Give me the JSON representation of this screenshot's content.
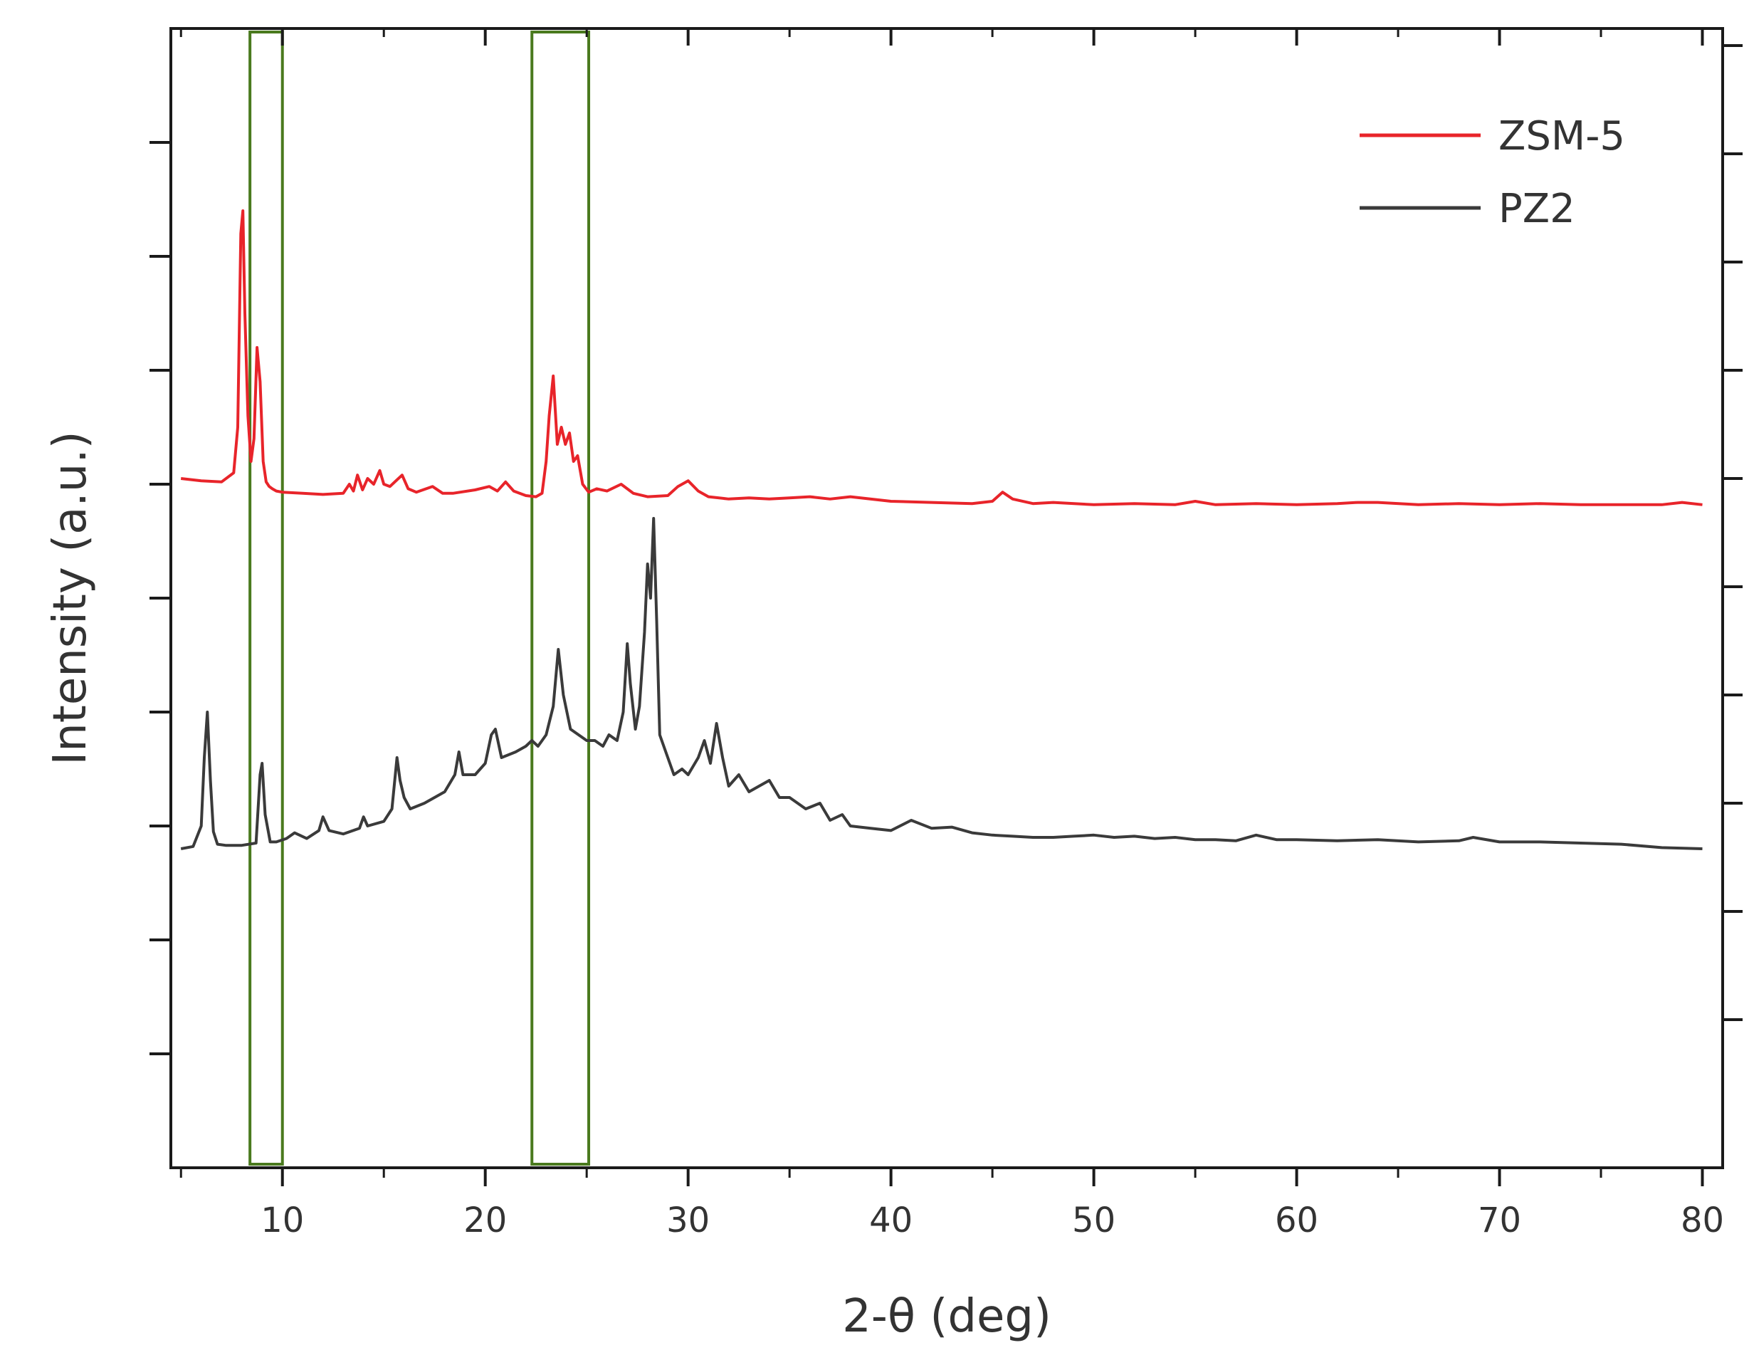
{
  "chart_data": {
    "type": "line",
    "xlabel": "2-θ (deg)",
    "ylabel": "Intensity (a.u.)",
    "xlim": [
      4.5,
      81
    ],
    "x_ticks": [
      10,
      20,
      30,
      40,
      50,
      60,
      70,
      80
    ],
    "x_tick_labels": [
      "10",
      "20",
      "30",
      "40",
      "50",
      "60",
      "70",
      "80"
    ],
    "ylim": [
      0,
      100
    ],
    "y_tick_labels_shown": false,
    "grid": false,
    "legend_placement": "top-right",
    "highlight_regions": [
      {
        "x": [
          8.4,
          10.0
        ],
        "color": "#4a7a1e"
      },
      {
        "x": [
          22.3,
          25.1
        ],
        "color": "#4a7a1e"
      }
    ],
    "series": [
      {
        "name": "ZSM-5",
        "color": "#e8242a",
        "baseline": 58,
        "x": [
          5,
          6,
          7,
          7.6,
          7.8,
          7.95,
          8.05,
          8.15,
          8.3,
          8.45,
          8.6,
          8.75,
          8.9,
          9.05,
          9.2,
          9.35,
          9.5,
          9.7,
          10,
          11,
          12,
          13,
          13.3,
          13.5,
          13.7,
          13.95,
          14.2,
          14.5,
          14.8,
          15.0,
          15.3,
          15.6,
          15.9,
          16.2,
          16.6,
          17.4,
          17.9,
          18.4,
          19.5,
          20.2,
          20.6,
          21.0,
          21.4,
          22.0,
          22.5,
          22.8,
          23.0,
          23.15,
          23.35,
          23.55,
          23.75,
          23.95,
          24.15,
          24.35,
          24.55,
          24.8,
          25.1,
          25.5,
          26.0,
          26.7,
          27.3,
          28.0,
          29.0,
          29.5,
          30.0,
          30.5,
          31.0,
          32.0,
          33.0,
          34.0,
          35.0,
          36.0,
          37.0,
          38.0,
          40.0,
          42.0,
          44.0,
          45.0,
          45.5,
          46.0,
          47.0,
          48.0,
          50.0,
          52.0,
          54.0,
          55.0,
          56.0,
          58.0,
          60.0,
          62.0,
          63.0,
          64.0,
          66.0,
          68.0,
          70.0,
          72.0,
          74.0,
          76.0,
          78.0,
          79.0,
          80.0
        ],
        "y": [
          60.5,
          60.3,
          60.2,
          61.0,
          65.0,
          82.0,
          84.0,
          75.0,
          66.0,
          62.0,
          64.0,
          72.0,
          69.0,
          62.0,
          60.2,
          59.8,
          59.6,
          59.4,
          59.3,
          59.2,
          59.1,
          59.2,
          60.0,
          59.4,
          60.8,
          59.5,
          60.5,
          60.0,
          61.2,
          60.0,
          59.8,
          60.3,
          60.8,
          59.6,
          59.3,
          59.8,
          59.2,
          59.2,
          59.5,
          59.8,
          59.4,
          60.2,
          59.4,
          59.0,
          58.9,
          59.2,
          62.0,
          66.0,
          69.5,
          63.5,
          65.0,
          63.5,
          64.5,
          62.0,
          62.5,
          60.0,
          59.3,
          59.6,
          59.4,
          60.0,
          59.2,
          58.9,
          59.0,
          59.8,
          60.3,
          59.4,
          58.9,
          58.7,
          58.8,
          58.7,
          58.8,
          58.9,
          58.7,
          58.9,
          58.5,
          58.4,
          58.3,
          58.5,
          59.3,
          58.7,
          58.3,
          58.4,
          58.2,
          58.3,
          58.2,
          58.5,
          58.2,
          58.3,
          58.2,
          58.3,
          58.4,
          58.4,
          58.2,
          58.3,
          58.2,
          58.3,
          58.2,
          58.2,
          58.2,
          58.4,
          58.2
        ]
      },
      {
        "name": "PZ2",
        "color": "#3a3a3a",
        "baseline": 28,
        "x": [
          5,
          5.6,
          6.0,
          6.15,
          6.3,
          6.45,
          6.6,
          6.8,
          7.2,
          8.0,
          8.7,
          8.9,
          9.0,
          9.15,
          9.4,
          9.7,
          10.2,
          10.6,
          11.2,
          11.8,
          12.0,
          12.3,
          13.0,
          13.8,
          14.0,
          14.2,
          15.0,
          15.4,
          15.65,
          15.8,
          16.0,
          16.3,
          17.0,
          18.0,
          18.5,
          18.7,
          18.9,
          19.5,
          20.0,
          20.3,
          20.5,
          20.8,
          21.5,
          22.0,
          22.3,
          22.6,
          23.0,
          23.35,
          23.6,
          23.85,
          24.2,
          24.6,
          25.0,
          25.4,
          25.8,
          26.1,
          26.5,
          26.8,
          27.0,
          27.15,
          27.4,
          27.6,
          27.85,
          28.0,
          28.15,
          28.3,
          28.45,
          28.6,
          28.9,
          29.3,
          29.7,
          30.0,
          30.5,
          30.8,
          31.1,
          31.4,
          31.7,
          32.0,
          32.5,
          33.0,
          33.5,
          34.0,
          34.5,
          35.0,
          35.8,
          36.5,
          37.0,
          37.6,
          38.0,
          39.0,
          40.0,
          41.0,
          42.0,
          43.0,
          44.0,
          45.0,
          46.0,
          47.0,
          48.0,
          49.0,
          50.0,
          51.0,
          52.0,
          53.0,
          54.0,
          55.0,
          56.0,
          57.0,
          58.0,
          59.0,
          60.0,
          62.0,
          64.0,
          66.0,
          68.0,
          68.7,
          70.0,
          72.0,
          74.0,
          76.0,
          78.0,
          80.0
        ],
        "y": [
          28.0,
          28.2,
          30.0,
          36.0,
          40.0,
          34.0,
          29.5,
          28.4,
          28.3,
          28.3,
          28.5,
          34.5,
          35.5,
          31.0,
          28.6,
          28.6,
          28.9,
          29.4,
          28.9,
          29.6,
          30.8,
          29.6,
          29.3,
          29.8,
          30.8,
          30.0,
          30.4,
          31.5,
          36.0,
          34.0,
          32.5,
          31.5,
          32.0,
          33.0,
          34.5,
          36.5,
          34.5,
          34.5,
          35.5,
          38.0,
          38.5,
          36.0,
          36.5,
          37.0,
          37.5,
          37.0,
          38.0,
          40.5,
          45.5,
          41.5,
          38.5,
          38.0,
          37.5,
          37.5,
          37.0,
          38.0,
          37.5,
          40.0,
          46.0,
          42.5,
          38.5,
          40.5,
          47.0,
          53.0,
          50.0,
          57.0,
          48.0,
          38.0,
          36.5,
          34.5,
          35.0,
          34.5,
          36.0,
          37.5,
          35.5,
          39.0,
          36.0,
          33.5,
          34.5,
          33.0,
          33.5,
          34.0,
          32.5,
          32.5,
          31.5,
          32.0,
          30.5,
          31.0,
          30.0,
          29.8,
          29.6,
          30.5,
          29.8,
          29.9,
          29.4,
          29.2,
          29.1,
          29.0,
          29.0,
          29.1,
          29.2,
          29.0,
          29.1,
          28.9,
          29.0,
          28.8,
          28.8,
          28.7,
          29.2,
          28.8,
          28.8,
          28.7,
          28.8,
          28.6,
          28.7,
          29.0,
          28.6,
          28.6,
          28.5,
          28.4,
          28.1,
          28.0
        ]
      }
    ]
  }
}
